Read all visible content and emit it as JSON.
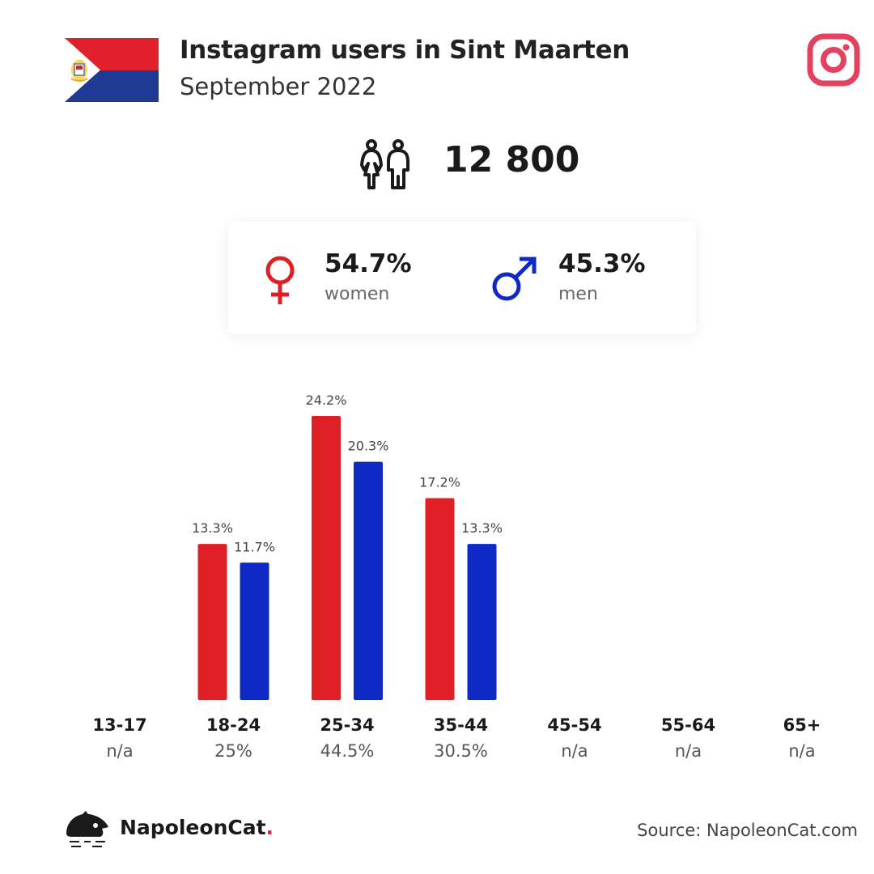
{
  "header": {
    "title": "Instagram users in Sint Maarten",
    "subtitle": "September 2022"
  },
  "icons": {
    "flag": "sint-maarten-flag-icon",
    "platform": "instagram-icon",
    "users": "users-icon",
    "female": "female-symbol-icon",
    "male": "male-symbol-icon",
    "logo": "napoleoncat-logo-icon"
  },
  "colors": {
    "women": "#de1f26",
    "men": "#0f2ac4",
    "instagram": "#e4405f"
  },
  "total_users": "12 800",
  "gender": {
    "women_pct": "54.7%",
    "women_label": "women",
    "men_pct": "45.3%",
    "men_label": "men"
  },
  "chart_data": {
    "type": "bar",
    "categories": [
      "13-17",
      "18-24",
      "25-34",
      "35-44",
      "45-54",
      "55-64",
      "65+"
    ],
    "category_totals": [
      "n/a",
      "25%",
      "44.5%",
      "30.5%",
      "n/a",
      "n/a",
      "n/a"
    ],
    "series": [
      {
        "name": "women",
        "values": [
          null,
          13.3,
          24.2,
          17.2,
          null,
          null,
          null
        ],
        "labels": [
          "",
          "13.3%",
          "24.2%",
          "17.2%",
          "",
          "",
          ""
        ]
      },
      {
        "name": "men",
        "values": [
          null,
          11.7,
          20.3,
          13.3,
          null,
          null,
          null
        ],
        "labels": [
          "",
          "11.7%",
          "20.3%",
          "13.3%",
          "",
          "",
          ""
        ]
      }
    ],
    "ylim": [
      0,
      24.2
    ],
    "grid": false
  },
  "footer": {
    "brand_name": "NapoleonCat",
    "brand_dot": ".",
    "source": "Source: NapoleonCat.com"
  }
}
